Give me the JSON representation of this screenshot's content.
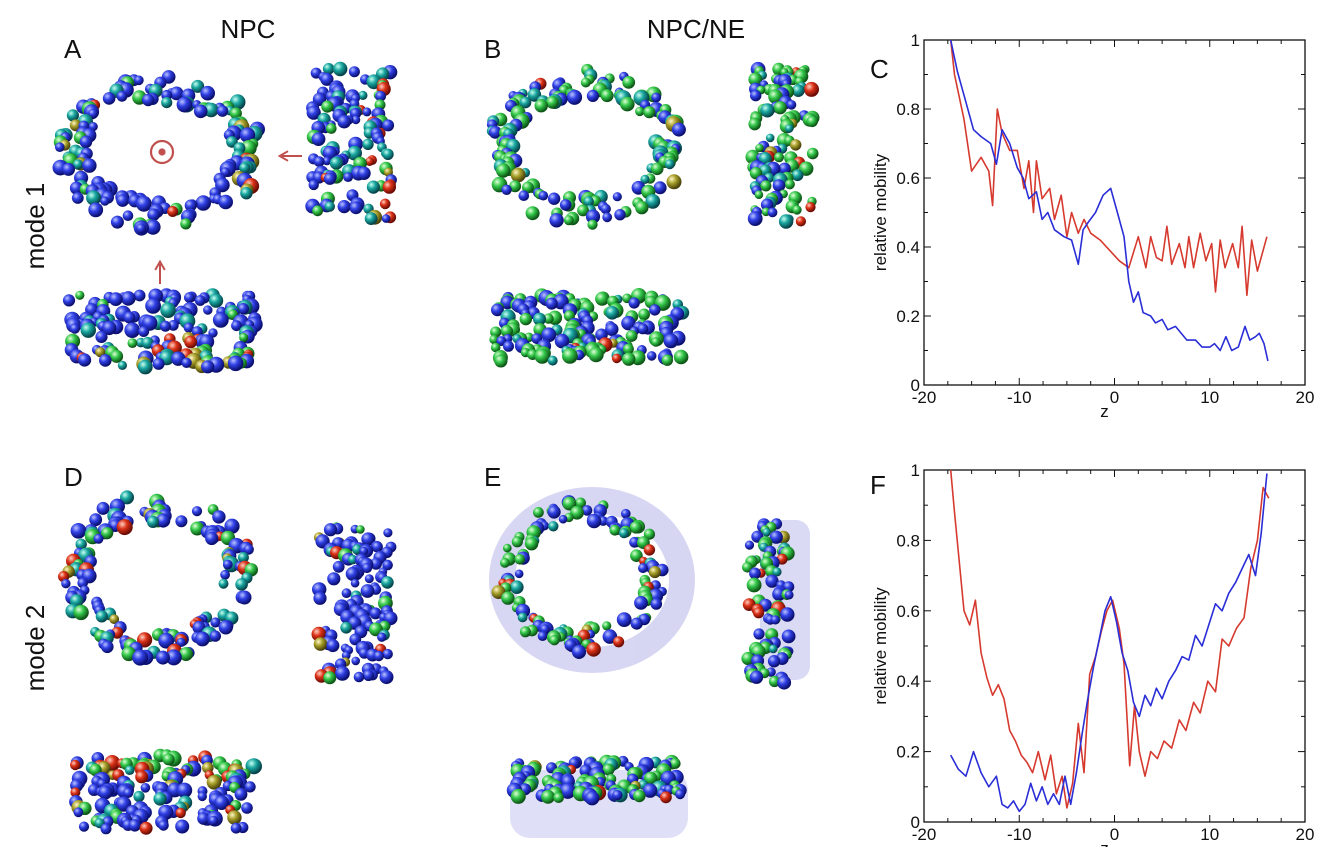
{
  "figure": {
    "column_titles": [
      "NPC",
      "NPC/NE"
    ],
    "row_titles": [
      "mode 1",
      "mode 2"
    ],
    "panel_letters": [
      "A",
      "B",
      "C",
      "D",
      "E",
      "F"
    ]
  },
  "colors": {
    "npc_series": "#d63a2f",
    "npc_ne_series": "#2a2ed6",
    "bead_low": "#1b2fd0",
    "bead_mid": "#2fc24a",
    "bead_high": "#d02a16",
    "arrow": "#c0504d"
  },
  "icons": {
    "rotation_axis_marker": "dot-in-circle",
    "view_arrows": "arrow"
  },
  "chart_data": [
    {
      "panel": "C",
      "type": "line",
      "xlabel": "z",
      "ylabel": "relative mobility",
      "xlim": [
        -20,
        20
      ],
      "ylim": [
        0,
        1
      ],
      "xticks": [
        "-20",
        "-10",
        "0",
        "10",
        "20"
      ],
      "yticks": [
        "0",
        "0.2",
        "0.4",
        "0.6",
        "0.8",
        "1"
      ],
      "grid": false,
      "series": [
        {
          "color": "#d63a2f",
          "x": [
            -17.2,
            -16.8,
            -15.8,
            -15.0,
            -14.0,
            -13.2,
            -12.8,
            -12.3,
            -11.8,
            -11.0,
            -10.2,
            -9.5,
            -9.0,
            -8.5,
            -8.2,
            -7.6,
            -6.8,
            -6.3,
            -5.6,
            -5.0,
            -4.5,
            -3.8,
            -3.2,
            -2.5,
            -1.5,
            0.5,
            1.5,
            2.5,
            3.3,
            3.8,
            4.4,
            5.0,
            5.5,
            6.0,
            6.8,
            7.4,
            7.8,
            8.3,
            9.0,
            9.6,
            10.2,
            10.6,
            11.1,
            11.6,
            12.4,
            13.0,
            13.4,
            13.9,
            14.4,
            15.0,
            16.0
          ],
          "y": [
            1.0,
            0.9,
            0.77,
            0.62,
            0.66,
            0.62,
            0.52,
            0.8,
            0.73,
            0.68,
            0.68,
            0.57,
            0.65,
            0.5,
            0.65,
            0.54,
            0.57,
            0.48,
            0.55,
            0.43,
            0.5,
            0.44,
            0.48,
            0.44,
            0.42,
            0.36,
            0.34,
            0.43,
            0.34,
            0.43,
            0.37,
            0.36,
            0.46,
            0.35,
            0.41,
            0.34,
            0.43,
            0.34,
            0.44,
            0.36,
            0.41,
            0.27,
            0.42,
            0.34,
            0.41,
            0.34,
            0.46,
            0.26,
            0.42,
            0.33,
            0.43
          ]
        },
        {
          "color": "#2a2ed6",
          "x": [
            -17.2,
            -16.5,
            -15.8,
            -14.8,
            -14.0,
            -13.0,
            -12.4,
            -11.8,
            -11.0,
            -10.2,
            -9.6,
            -9.0,
            -8.2,
            -7.6,
            -7.0,
            -6.3,
            -5.3,
            -4.5,
            -3.8,
            -3.3,
            -2.8,
            -2.0,
            -1.2,
            -0.4,
            0.3,
            1.0,
            1.5,
            2.0,
            2.5,
            3.0,
            3.8,
            4.3,
            5.0,
            5.6,
            6.4,
            7.0,
            7.6,
            8.5,
            9.2,
            10.0,
            10.5,
            11.1,
            11.7,
            12.3,
            13.0,
            13.7,
            14.2,
            14.8,
            15.2,
            15.7,
            16.1
          ],
          "y": [
            1.0,
            0.91,
            0.84,
            0.74,
            0.72,
            0.7,
            0.64,
            0.74,
            0.7,
            0.63,
            0.6,
            0.54,
            0.56,
            0.48,
            0.5,
            0.45,
            0.43,
            0.42,
            0.35,
            0.45,
            0.47,
            0.5,
            0.55,
            0.57,
            0.5,
            0.43,
            0.3,
            0.24,
            0.27,
            0.21,
            0.2,
            0.18,
            0.19,
            0.16,
            0.17,
            0.15,
            0.13,
            0.13,
            0.11,
            0.11,
            0.12,
            0.1,
            0.14,
            0.1,
            0.11,
            0.17,
            0.13,
            0.14,
            0.15,
            0.12,
            0.07
          ]
        }
      ]
    },
    {
      "panel": "F",
      "type": "line",
      "xlabel": "z",
      "ylabel": "relative mobility",
      "xlim": [
        -20,
        20
      ],
      "ylim": [
        0,
        1
      ],
      "xticks": [
        "-20",
        "-10",
        "0",
        "10",
        "20"
      ],
      "yticks": [
        "0",
        "0.2",
        "0.4",
        "0.6",
        "0.8",
        "1"
      ],
      "grid": false,
      "series": [
        {
          "color": "#d63a2f",
          "x": [
            -17.2,
            -16.8,
            -15.8,
            -15.2,
            -14.6,
            -14.0,
            -13.4,
            -12.8,
            -12.2,
            -11.6,
            -11.0,
            -10.4,
            -9.8,
            -9.2,
            -8.6,
            -8.0,
            -7.3,
            -6.7,
            -6.1,
            -5.5,
            -5.0,
            -4.4,
            -3.8,
            -3.2,
            -2.6,
            -2.0,
            -1.4,
            -0.8,
            -0.2,
            0.5,
            1.0,
            1.6,
            2.1,
            2.6,
            3.2,
            3.8,
            4.5,
            5.2,
            6.0,
            6.8,
            7.5,
            8.3,
            9.0,
            9.8,
            10.6,
            11.3,
            12.0,
            12.8,
            13.6,
            14.3,
            15.0,
            15.6,
            16.2
          ],
          "y": [
            1.0,
            0.88,
            0.6,
            0.56,
            0.63,
            0.48,
            0.41,
            0.36,
            0.39,
            0.35,
            0.26,
            0.23,
            0.19,
            0.17,
            0.14,
            0.2,
            0.12,
            0.19,
            0.08,
            0.13,
            0.04,
            0.11,
            0.28,
            0.14,
            0.42,
            0.47,
            0.54,
            0.6,
            0.63,
            0.55,
            0.45,
            0.16,
            0.33,
            0.2,
            0.13,
            0.2,
            0.18,
            0.23,
            0.21,
            0.29,
            0.26,
            0.34,
            0.31,
            0.4,
            0.37,
            0.52,
            0.5,
            0.55,
            0.58,
            0.72,
            0.8,
            0.95,
            0.92
          ]
        },
        {
          "color": "#2a2ed6",
          "x": [
            -17.2,
            -16.4,
            -15.6,
            -14.8,
            -14.0,
            -13.2,
            -12.4,
            -11.8,
            -11.2,
            -10.6,
            -10.0,
            -9.4,
            -8.8,
            -8.2,
            -7.6,
            -7.0,
            -6.4,
            -5.8,
            -5.2,
            -4.6,
            -4.0,
            -3.4,
            -2.8,
            -2.2,
            -1.6,
            -1.0,
            -0.4,
            0.2,
            0.8,
            1.4,
            2.0,
            2.6,
            3.2,
            3.8,
            4.4,
            5.0,
            5.7,
            6.4,
            7.1,
            7.8,
            8.5,
            9.2,
            9.9,
            10.6,
            11.3,
            12.0,
            12.7,
            13.4,
            14.1,
            14.8,
            15.4,
            16.0
          ],
          "y": [
            0.19,
            0.15,
            0.13,
            0.2,
            0.14,
            0.1,
            0.13,
            0.05,
            0.04,
            0.06,
            0.03,
            0.05,
            0.11,
            0.06,
            0.1,
            0.05,
            0.08,
            0.05,
            0.13,
            0.05,
            0.14,
            0.25,
            0.35,
            0.44,
            0.52,
            0.6,
            0.64,
            0.57,
            0.48,
            0.43,
            0.34,
            0.3,
            0.36,
            0.33,
            0.38,
            0.35,
            0.4,
            0.43,
            0.47,
            0.46,
            0.53,
            0.5,
            0.56,
            0.62,
            0.6,
            0.65,
            0.68,
            0.72,
            0.76,
            0.7,
            0.82,
            0.99
          ]
        }
      ]
    }
  ]
}
